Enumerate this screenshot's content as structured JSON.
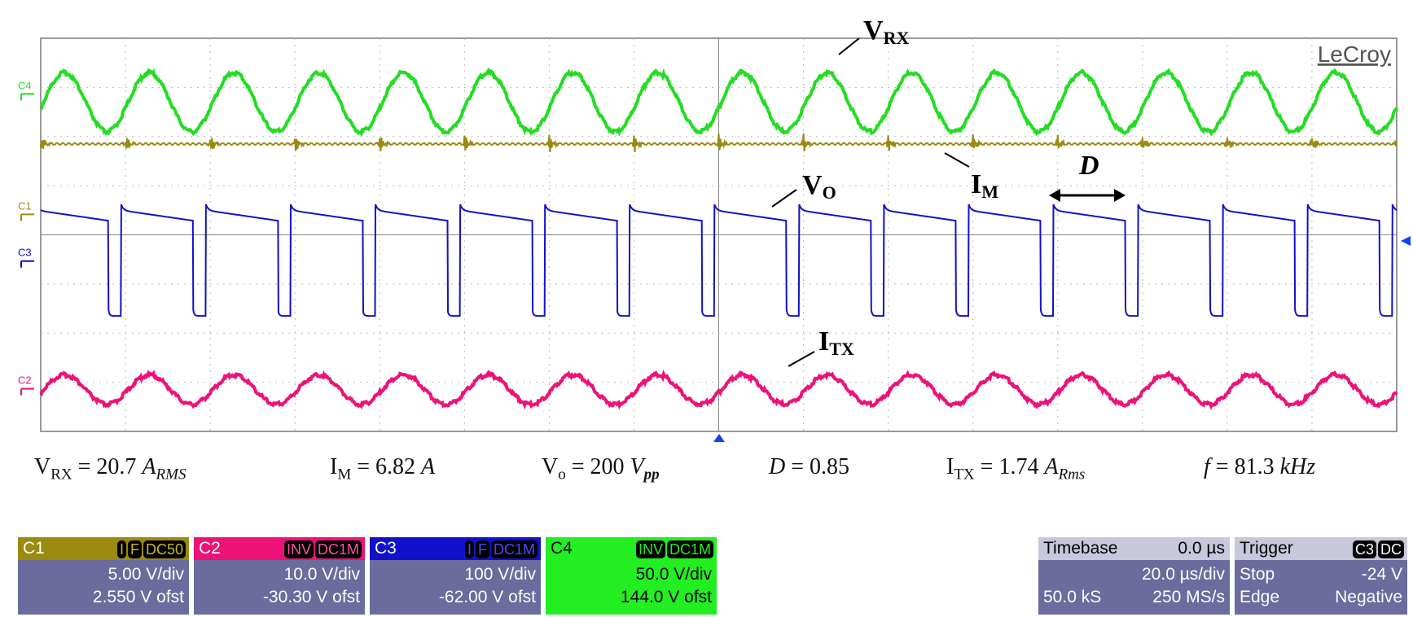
{
  "brand": "LeCroy",
  "chart_data": {
    "type": "line",
    "title": "",
    "grid": true,
    "divisions": {
      "x": 16,
      "y": 8
    },
    "frequency_khz": 81.3,
    "duty_cycle": 0.85,
    "periods_on_screen": 16,
    "series": [
      {
        "channel": "C4",
        "name": "VRX",
        "shape": "sine",
        "color": "#22dd22",
        "center_div": 1.3,
        "amplitude_div": 0.6
      },
      {
        "channel": "C1",
        "name": "IM",
        "shape": "spike",
        "color": "#9a8a10",
        "center_div": 2.15,
        "amplitude_div": 0.2
      },
      {
        "channel": "C3",
        "name": "VO",
        "shape": "square",
        "color": "#1111cc",
        "high_div": 3.55,
        "low_div": 5.65
      },
      {
        "channel": "C2",
        "name": "ITX",
        "shape": "sine",
        "color": "#ee1177",
        "center_div": 7.15,
        "amplitude_div": 0.3
      }
    ],
    "annotations": [
      {
        "label": "V",
        "sub": "RX"
      },
      {
        "label": "I",
        "sub": "M"
      },
      {
        "label": "V",
        "sub": "O"
      },
      {
        "label": "D"
      },
      {
        "label": "I",
        "sub": "TX"
      }
    ]
  },
  "captions": {
    "vrx": {
      "label": "V",
      "sub": "RX",
      "eq": " = 20.7 ",
      "unit": "A",
      "unit_sub": "RMS"
    },
    "im": {
      "label": "I",
      "sub": "M",
      "eq": " = 6.82 ",
      "unit": "A"
    },
    "vo": {
      "label": "V",
      "sub": "o",
      "eq": " = 200 ",
      "unit": "V",
      "unit_sub": "pp"
    },
    "d": {
      "label": "D",
      "eq": " = 0.85"
    },
    "itx": {
      "label": "I",
      "sub": "TX",
      "eq": " = 1.74 ",
      "unit": "A",
      "unit_sub": "Rms"
    },
    "f": {
      "label": "f",
      "eq": " = 81.3 ",
      "unit": "kHz"
    }
  },
  "channels": [
    {
      "id": "C1",
      "badges": [
        "I",
        "F",
        "DC50"
      ],
      "vdiv": "5.00 V/div",
      "ofst": "2.550 V ofst",
      "color": "#9a8a10"
    },
    {
      "id": "C2",
      "badges": [
        "INV",
        "DC1M"
      ],
      "vdiv": "10.0 V/div",
      "ofst": "-30.30 V ofst",
      "color": "#ee1177"
    },
    {
      "id": "C3",
      "badges": [
        "I",
        "F",
        "DC1M"
      ],
      "vdiv": "100 V/div",
      "ofst": "-62.00 V ofst",
      "color": "#1111cc"
    },
    {
      "id": "C4",
      "badges": [
        "INV",
        "DC1M"
      ],
      "vdiv": "50.0 V/div",
      "ofst": "144.0 V ofst",
      "color": "#22dd22"
    }
  ],
  "timebase": {
    "label": "Timebase",
    "delay": "0.0 µs",
    "tdiv": "20.0 µs/div",
    "samples": "50.0 kS",
    "rate": "250 MS/s"
  },
  "trigger": {
    "label": "Trigger",
    "badges": [
      "C3",
      "DC"
    ],
    "mode": "Stop",
    "level": "-24 V",
    "type": "Edge",
    "slope": "Negative"
  }
}
